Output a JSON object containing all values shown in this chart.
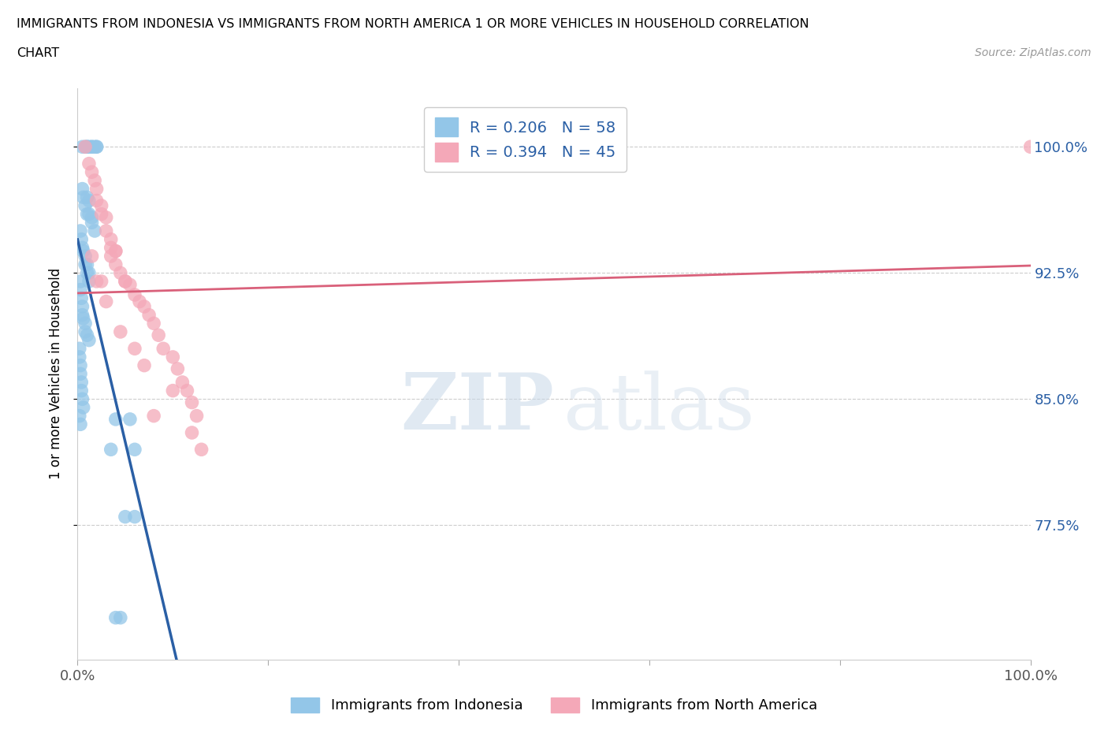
{
  "title_line1": "IMMIGRANTS FROM INDONESIA VS IMMIGRANTS FROM NORTH AMERICA 1 OR MORE VEHICLES IN HOUSEHOLD CORRELATION",
  "title_line2": "CHART",
  "source_text": "Source: ZipAtlas.com",
  "ylabel": "1 or more Vehicles in Household",
  "xmin": 0.0,
  "xmax": 1.0,
  "ymin": 0.695,
  "ymax": 1.035,
  "yticks": [
    0.775,
    0.85,
    0.925,
    1.0
  ],
  "ytick_labels": [
    "77.5%",
    "85.0%",
    "92.5%",
    "100.0%"
  ],
  "xticks": [
    0.0,
    0.2,
    0.4,
    0.6,
    0.8,
    1.0
  ],
  "xtick_labels": [
    "0.0%",
    "",
    "",
    "",
    "",
    "100.0%"
  ],
  "blue_color": "#93c6e8",
  "pink_color": "#f4a8b8",
  "blue_line_color": "#2a5fa5",
  "pink_line_color": "#d9607a",
  "R_blue": 0.206,
  "N_blue": 58,
  "R_pink": 0.394,
  "N_pink": 45,
  "legend_label_blue": "Immigrants from Indonesia",
  "legend_label_pink": "Immigrants from North America",
  "watermark_zip": "ZIP",
  "watermark_atlas": "atlas",
  "blue_x": [
    0.005,
    0.008,
    0.01,
    0.01,
    0.012,
    0.015,
    0.015,
    0.018,
    0.02,
    0.02,
    0.005,
    0.006,
    0.008,
    0.01,
    0.01,
    0.012,
    0.012,
    0.015,
    0.015,
    0.018,
    0.003,
    0.004,
    0.005,
    0.006,
    0.008,
    0.008,
    0.01,
    0.01,
    0.012,
    0.012,
    0.003,
    0.003,
    0.004,
    0.005,
    0.005,
    0.006,
    0.008,
    0.008,
    0.01,
    0.012,
    0.002,
    0.002,
    0.003,
    0.003,
    0.004,
    0.004,
    0.005,
    0.006,
    0.002,
    0.003,
    0.05,
    0.06,
    0.04,
    0.055,
    0.035,
    0.06,
    0.045,
    0.04
  ],
  "blue_y": [
    1.0,
    1.0,
    1.0,
    1.0,
    1.0,
    1.0,
    1.0,
    1.0,
    1.0,
    1.0,
    0.975,
    0.97,
    0.965,
    0.97,
    0.96,
    0.968,
    0.96,
    0.958,
    0.955,
    0.95,
    0.95,
    0.945,
    0.94,
    0.938,
    0.935,
    0.93,
    0.93,
    0.925,
    0.925,
    0.92,
    0.92,
    0.915,
    0.91,
    0.905,
    0.9,
    0.898,
    0.895,
    0.89,
    0.888,
    0.885,
    0.88,
    0.875,
    0.87,
    0.865,
    0.86,
    0.855,
    0.85,
    0.845,
    0.84,
    0.835,
    0.78,
    0.78,
    0.838,
    0.838,
    0.82,
    0.82,
    0.72,
    0.72
  ],
  "pink_x": [
    0.008,
    0.012,
    0.015,
    0.018,
    0.02,
    0.02,
    0.025,
    0.025,
    0.03,
    0.03,
    0.035,
    0.035,
    0.04,
    0.04,
    0.045,
    0.05,
    0.055,
    0.06,
    0.065,
    0.07,
    0.075,
    0.08,
    0.085,
    0.09,
    0.1,
    0.105,
    0.11,
    0.115,
    0.12,
    0.125,
    0.015,
    0.02,
    0.025,
    0.03,
    0.035,
    0.04,
    0.045,
    0.05,
    0.06,
    0.07,
    0.08,
    0.1,
    0.12,
    0.13,
    1.0
  ],
  "pink_y": [
    1.0,
    0.99,
    0.985,
    0.98,
    0.975,
    0.968,
    0.965,
    0.96,
    0.958,
    0.95,
    0.945,
    0.94,
    0.938,
    0.93,
    0.925,
    0.92,
    0.918,
    0.912,
    0.908,
    0.905,
    0.9,
    0.895,
    0.888,
    0.88,
    0.875,
    0.868,
    0.86,
    0.855,
    0.848,
    0.84,
    0.935,
    0.92,
    0.92,
    0.908,
    0.935,
    0.938,
    0.89,
    0.92,
    0.88,
    0.87,
    0.84,
    0.855,
    0.83,
    0.82,
    1.0
  ]
}
